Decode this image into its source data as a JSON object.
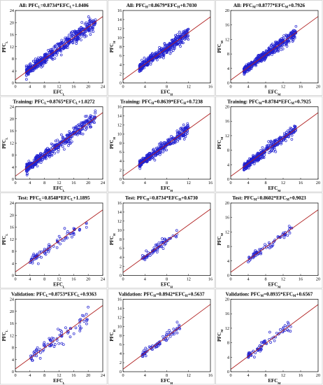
{
  "chart_data": [
    {
      "type": "scatter",
      "title": "All: PFCL=0.8734*EFCL+1.0406",
      "y_name": "PFCL",
      "x_name": "EFCL",
      "xticks": [
        0,
        4,
        8,
        12,
        16,
        20,
        24
      ],
      "yticks": [
        0,
        4,
        8,
        12,
        16,
        20,
        24
      ],
      "xlim": [
        0,
        24
      ],
      "ylim": [
        0,
        24
      ],
      "slope": 0.8734,
      "intercept": 1.0406,
      "x_range": [
        3,
        22
      ],
      "spread": 1.2,
      "n": 480
    },
    {
      "type": "scatter",
      "title": "All: PFCH=0.8679*EFCH+0.7030",
      "y_name": "PFCH",
      "x_name": "EFCH",
      "xticks": [
        0,
        4,
        8,
        12,
        16
      ],
      "yticks": [
        0,
        2,
        4,
        6,
        8,
        10,
        12,
        14,
        16
      ],
      "xlim": [
        0,
        16
      ],
      "ylim": [
        0,
        16
      ],
      "slope": 0.8679,
      "intercept": 0.703,
      "x_range": [
        3,
        12
      ],
      "spread": 0.7,
      "n": 420
    },
    {
      "type": "scatter",
      "title": "All: PFCM=0.8777*EFCM+0.7926",
      "y_name": "PFCM",
      "x_name": "EFCM",
      "xticks": [
        0,
        4,
        8,
        12,
        16,
        20
      ],
      "yticks": [
        0,
        4,
        8,
        12,
        16,
        20
      ],
      "xlim": [
        0,
        20
      ],
      "ylim": [
        0,
        20
      ],
      "slope": 0.8777,
      "intercept": 0.7926,
      "x_range": [
        3,
        15
      ],
      "spread": 0.8,
      "n": 420
    },
    {
      "type": "scatter",
      "title": "Training: PFCL=0.8765*EFCL+1.0272",
      "y_name": "PFCL",
      "x_name": "EFCL",
      "xticks": [
        0,
        4,
        8,
        12,
        16,
        20,
        24
      ],
      "yticks": [
        0,
        4,
        8,
        12,
        16,
        20,
        24
      ],
      "xlim": [
        0,
        24
      ],
      "ylim": [
        0,
        24
      ],
      "slope": 0.8765,
      "intercept": 1.0272,
      "x_range": [
        3,
        22
      ],
      "spread": 1.2,
      "n": 380
    },
    {
      "type": "scatter",
      "title": "Training: PFCH=0.8639*EFCH+0.7238",
      "y_name": "PFCH",
      "x_name": "EFCH",
      "xticks": [
        0,
        4,
        8,
        12,
        16
      ],
      "yticks": [
        0,
        2,
        4,
        6,
        8,
        10,
        12,
        14,
        16
      ],
      "xlim": [
        0,
        16
      ],
      "ylim": [
        0,
        16
      ],
      "slope": 0.8639,
      "intercept": 0.7238,
      "x_range": [
        3,
        12
      ],
      "spread": 0.7,
      "n": 340
    },
    {
      "type": "scatter",
      "title": "Training: PFCM=0.8784*EFCM+0.7925",
      "y_name": "PFCM",
      "x_name": "EFCM",
      "xticks": [
        0,
        4,
        8,
        12,
        16,
        20
      ],
      "yticks": [
        0,
        4,
        8,
        12,
        16,
        20
      ],
      "xlim": [
        0,
        20
      ],
      "ylim": [
        0,
        20
      ],
      "slope": 0.8784,
      "intercept": 0.7925,
      "x_range": [
        3,
        15
      ],
      "spread": 0.8,
      "n": 340
    },
    {
      "type": "scatter",
      "title": "Test: PFCL=0.8548*EFCL+1.1895",
      "y_name": "PFCL",
      "x_name": "EFCL",
      "xticks": [
        0,
        4,
        8,
        12,
        16,
        20,
        24
      ],
      "yticks": [
        0,
        4,
        8,
        12,
        16,
        20,
        24
      ],
      "xlim": [
        0,
        24
      ],
      "ylim": [
        0,
        24
      ],
      "slope": 0.8548,
      "intercept": 1.1895,
      "x_range": [
        4,
        20
      ],
      "spread": 1.2,
      "n": 80
    },
    {
      "type": "scatter",
      "title": "Test: PFCH=0.8734*EFCH+0.6730",
      "y_name": "PFCH",
      "x_name": "EFCH",
      "xticks": [
        0,
        4,
        8,
        12,
        16
      ],
      "yticks": [
        0,
        2,
        4,
        6,
        8,
        10,
        12,
        14,
        16
      ],
      "xlim": [
        0,
        16
      ],
      "ylim": [
        0,
        16
      ],
      "slope": 0.8734,
      "intercept": 0.673,
      "x_range": [
        3.5,
        10
      ],
      "spread": 0.6,
      "n": 70
    },
    {
      "type": "scatter",
      "title": "Test: PFCM=0.8602*EFCM+0.9023",
      "y_name": "PFCM",
      "x_name": "EFCM",
      "xticks": [
        0,
        4,
        8,
        12,
        16,
        20
      ],
      "yticks": [
        0,
        4,
        8,
        12,
        16,
        20
      ],
      "xlim": [
        0,
        20
      ],
      "ylim": [
        0,
        20
      ],
      "slope": 0.8602,
      "intercept": 0.9023,
      "x_range": [
        4,
        14
      ],
      "spread": 0.8,
      "n": 70
    },
    {
      "type": "scatter",
      "title": "Validation: PFCL=0.8753*EFCL+0.9363",
      "y_name": "PFCL",
      "x_name": "EFCL",
      "xticks": [
        0,
        4,
        8,
        12,
        16,
        20,
        24
      ],
      "yticks": [
        0,
        4,
        8,
        12,
        16,
        20,
        24
      ],
      "xlim": [
        0,
        24
      ],
      "ylim": [
        0,
        24
      ],
      "slope": 0.8753,
      "intercept": 0.9363,
      "x_range": [
        4,
        20
      ],
      "spread": 1.4,
      "n": 80
    },
    {
      "type": "scatter",
      "title": "Validation: PFCH=0.8942*EFCH+0.5637",
      "y_name": "PFCH",
      "x_name": "EFCH",
      "xticks": [
        0,
        4,
        8,
        12,
        16
      ],
      "yticks": [
        0,
        2,
        4,
        6,
        8,
        10,
        12,
        14,
        16
      ],
      "xlim": [
        0,
        16
      ],
      "ylim": [
        0,
        16
      ],
      "slope": 0.8942,
      "intercept": 0.5637,
      "x_range": [
        3.5,
        10.5
      ],
      "spread": 0.6,
      "n": 70
    },
    {
      "type": "scatter",
      "title": "Validation: PFCM=0.8935*EFCM+0.6567",
      "y_name": "PFCM",
      "x_name": "EFCM",
      "xticks": [
        0,
        4,
        8,
        12,
        16,
        20
      ],
      "yticks": [
        0,
        4,
        8,
        12,
        16,
        20
      ],
      "xlim": [
        0,
        20
      ],
      "ylim": [
        0,
        20
      ],
      "slope": 0.8935,
      "intercept": 0.6567,
      "x_range": [
        4,
        14
      ],
      "spread": 0.8,
      "n": 70
    }
  ]
}
